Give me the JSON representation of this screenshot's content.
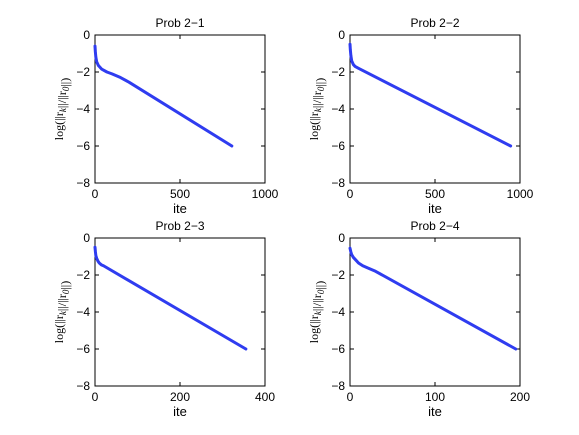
{
  "chart_data": [
    {
      "type": "line",
      "title": "Prob 2−1",
      "xlabel": "ite",
      "ylabel": "log(||r_k||/||r_0||)",
      "xlim": [
        0,
        1000
      ],
      "ylim": [
        -8,
        0
      ],
      "xticks": [
        0,
        500,
        1000
      ],
      "yticks": [
        0,
        -2,
        -4,
        -6,
        -8
      ],
      "grid": false,
      "color": "#2f3cf0",
      "series": [
        {
          "x": [
            0,
            2,
            5,
            10,
            20,
            40,
            70,
            100,
            150,
            200,
            805
          ],
          "y": [
            -0.6,
            -0.9,
            -1.2,
            -1.45,
            -1.65,
            -1.85,
            -2.0,
            -2.1,
            -2.3,
            -2.55,
            -6.0
          ]
        }
      ]
    },
    {
      "type": "line",
      "title": "Prob 2−2",
      "xlabel": "ite",
      "ylabel": "log(||r_k||/||r_0||)",
      "xlim": [
        0,
        1000
      ],
      "ylim": [
        -8,
        0
      ],
      "xticks": [
        0,
        500,
        1000
      ],
      "yticks": [
        0,
        -2,
        -4,
        -6,
        -8
      ],
      "grid": false,
      "color": "#2f3cf0",
      "series": [
        {
          "x": [
            0,
            2,
            5,
            10,
            20,
            30,
            50,
            945
          ],
          "y": [
            -0.5,
            -0.8,
            -1.1,
            -1.4,
            -1.6,
            -1.7,
            -1.8,
            -6.0
          ]
        }
      ]
    },
    {
      "type": "line",
      "title": "Prob 2−3",
      "xlabel": "ite",
      "ylabel": "log(||r_k||/||r_0||)",
      "xlim": [
        0,
        400
      ],
      "ylim": [
        -8,
        0
      ],
      "xticks": [
        0,
        200,
        400
      ],
      "yticks": [
        0,
        -2,
        -4,
        -6,
        -8
      ],
      "grid": false,
      "color": "#2f3cf0",
      "series": [
        {
          "x": [
            0,
            1,
            2,
            4,
            7,
            10,
            15,
            20,
            355
          ],
          "y": [
            -0.5,
            -0.75,
            -0.95,
            -1.1,
            -1.25,
            -1.35,
            -1.45,
            -1.5,
            -6.0
          ]
        }
      ]
    },
    {
      "type": "line",
      "title": "Prob 2−4",
      "xlabel": "ite",
      "ylabel": "log(||r_k||/||r_0||)",
      "xlim": [
        0,
        200
      ],
      "ylim": [
        -8,
        0
      ],
      "xticks": [
        0,
        100,
        200
      ],
      "yticks": [
        0,
        -2,
        -4,
        -6,
        -8
      ],
      "grid": false,
      "color": "#2f3cf0",
      "series": [
        {
          "x": [
            0,
            1,
            2,
            4,
            7,
            10,
            15,
            20,
            30,
            195
          ],
          "y": [
            -0.55,
            -0.75,
            -0.9,
            -1.05,
            -1.2,
            -1.35,
            -1.5,
            -1.6,
            -1.8,
            -6.0
          ]
        }
      ]
    }
  ]
}
